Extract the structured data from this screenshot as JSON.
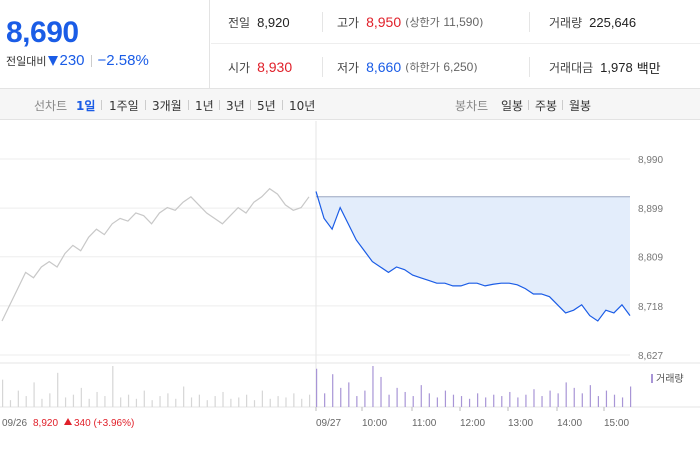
{
  "quote": {
    "price": "8,690",
    "change_label": "전일대비",
    "change_value": "230",
    "change_pct": "−2.58%",
    "direction_icon": "down-triangle-icon"
  },
  "stats": {
    "prev_close": {
      "label": "전일",
      "value": "8,920"
    },
    "high": {
      "label": "고가",
      "value": "8,950",
      "limit_label": "상한가",
      "limit_value": "11,590"
    },
    "volume": {
      "label": "거래량",
      "value": "225,646"
    },
    "open": {
      "label": "시가",
      "value": "8,930"
    },
    "low": {
      "label": "저가",
      "value": "8,660",
      "limit_label": "하한가",
      "limit_value": "6,250"
    },
    "trade_value": {
      "label": "거래대금",
      "value": "1,978",
      "unit": "백만"
    }
  },
  "line_tabs": {
    "label": "선차트",
    "items": [
      "1일",
      "1주일",
      "3개월",
      "1년",
      "3년",
      "5년",
      "10년"
    ],
    "active": 0
  },
  "candle_tabs": {
    "label": "봉차트",
    "items": [
      "일봉",
      "주봉",
      "월봉"
    ]
  },
  "chart_labels": {
    "prev_day_date": "09/26",
    "prev_day_price": "8,920",
    "prev_day_change": "340 (+3.96%)",
    "volume_legend": "거래량"
  },
  "colors": {
    "up": "#e0202a",
    "down": "#1a5ce6",
    "prev_line": "#c8c8c8",
    "fill": "#e3edfb",
    "volume_prev": "#d6d6d6",
    "volume_today": "#a895d6"
  },
  "chart_data": {
    "type": "line",
    "y_ticks": [
      "8,990",
      "8,899",
      "8,809",
      "8,718",
      "8,627"
    ],
    "y_tick_values": [
      8990,
      8899,
      8809,
      8718,
      8627
    ],
    "ylim": [
      8627,
      8990
    ],
    "x_ticks": [
      "09/27",
      "10:00",
      "11:00",
      "12:00",
      "13:00",
      "14:00",
      "15:00"
    ],
    "reference_price": 8920,
    "series": [
      {
        "day": "09/26",
        "values": [
          8690,
          8720,
          8750,
          8780,
          8770,
          8790,
          8800,
          8790,
          8815,
          8830,
          8820,
          8845,
          8860,
          8850,
          8870,
          8880,
          8875,
          8890,
          8885,
          8870,
          8890,
          8900,
          8895,
          8910,
          8920,
          8905,
          8890,
          8880,
          8870,
          8885,
          8900,
          8890,
          8910,
          8920,
          8935,
          8925,
          8905,
          8895,
          8900,
          8920
        ]
      },
      {
        "day": "09/27",
        "values": [
          8930,
          8880,
          8860,
          8900,
          8870,
          8840,
          8820,
          8800,
          8790,
          8780,
          8790,
          8785,
          8775,
          8770,
          8765,
          8760,
          8760,
          8755,
          8755,
          8760,
          8760,
          8755,
          8758,
          8760,
          8760,
          8757,
          8750,
          8740,
          8740,
          8735,
          8720,
          8705,
          8710,
          8720,
          8700,
          8690,
          8710,
          8705,
          8720,
          8700
        ]
      }
    ],
    "volume": {
      "prev_day": [
        20,
        5,
        12,
        8,
        18,
        6,
        10,
        25,
        7,
        9,
        14,
        6,
        11,
        8,
        30,
        7,
        9,
        6,
        12,
        5,
        8,
        10,
        6,
        15,
        7,
        9,
        5,
        8,
        11,
        6,
        7,
        9,
        5,
        12,
        6,
        8,
        7,
        10,
        6,
        9
      ],
      "today": [
        28,
        10,
        24,
        14,
        18,
        8,
        12,
        30,
        22,
        9,
        14,
        11,
        8,
        16,
        10,
        7,
        12,
        9,
        8,
        6,
        10,
        7,
        9,
        8,
        11,
        7,
        9,
        13,
        8,
        12,
        10,
        18,
        14,
        10,
        16,
        8,
        12,
        9,
        7,
        15
      ]
    }
  }
}
